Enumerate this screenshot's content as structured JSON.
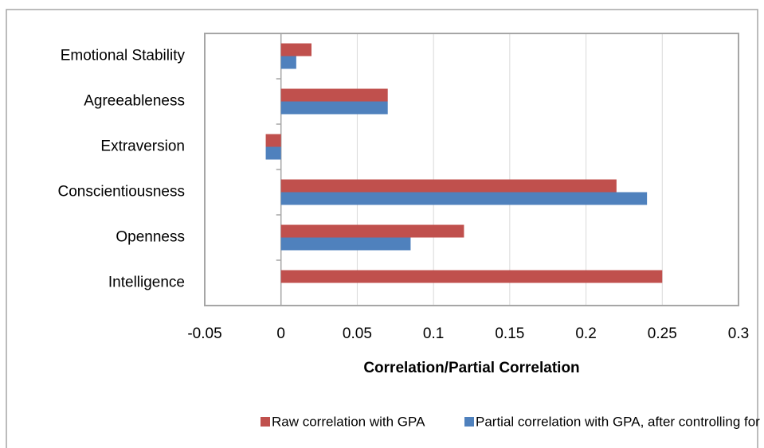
{
  "chart_data": {
    "type": "hbar",
    "xlabel": "Correlation/Partial Correlation",
    "categories": [
      "Emotional Stability",
      "Agreeableness",
      "Extraversion",
      "Conscientiousness",
      "Openness",
      "Intelligence"
    ],
    "series": [
      {
        "name": "Raw correlation with GPA",
        "color": "#c0504d",
        "values": [
          0.02,
          0.07,
          -0.01,
          0.22,
          0.12,
          0.25
        ]
      },
      {
        "name": "Partial correlation with GPA, after controlling for IQ",
        "color": "#4f81bd",
        "values": [
          0.01,
          0.07,
          -0.01,
          0.24,
          0.085,
          null
        ]
      }
    ],
    "xlim": [
      -0.05,
      0.3
    ],
    "xticks": [
      -0.05,
      0,
      0.05,
      0.1,
      0.15,
      0.2,
      0.25,
      0.3
    ],
    "grid": true,
    "legend": "bottom"
  }
}
